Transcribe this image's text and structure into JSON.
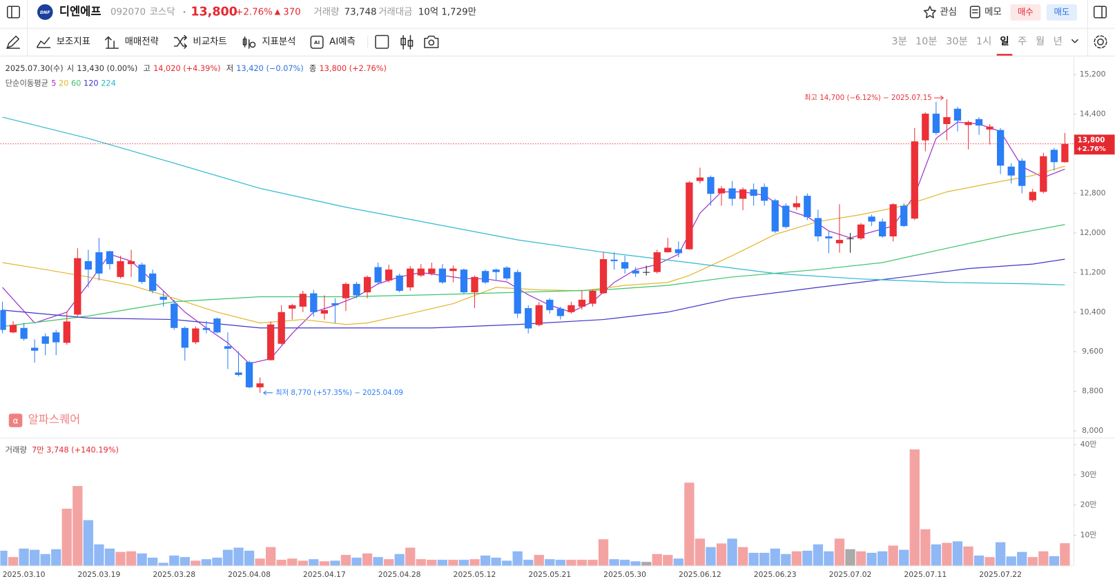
{
  "header": {
    "logo": "DNF",
    "name": "디엔에프",
    "code": "092070",
    "market": "코스닥",
    "price": "13,800",
    "change_rate": "+2.76%",
    "change": "370",
    "volume_label": "거래량",
    "volume": "73,748",
    "amount_label": "거래대금",
    "amount": "10억 1,729만",
    "watch": "관심",
    "memo": "메모",
    "buy": "매수",
    "sell": "매도"
  },
  "toolbar": {
    "tools": [
      "보조지표",
      "매매전략",
      "비교차트",
      "지표분석",
      "AI예측"
    ],
    "periods": [
      "3분",
      "10분",
      "30분",
      "1시",
      "일",
      "주",
      "월",
      "년"
    ],
    "selected_period": 4
  },
  "chart_data": [
    {
      "type": "candlestick",
      "info": {
        "date": "2025.07.30(수)",
        "open_label": "시",
        "open": "13,430 (0.00%)",
        "high_label": "고",
        "high": "14,020 (+4.39%)",
        "low_label": "저",
        "low": "13,420 (−0.07%)",
        "close_label": "종",
        "close": "13,800 (+2.76%)"
      },
      "categories": [
        null,
        null,
        "2025.03.10",
        null,
        null,
        null,
        null,
        null,
        null,
        "2025.03.19",
        null,
        null,
        null,
        null,
        null,
        null,
        "2025.03.28",
        null,
        null,
        null,
        null,
        null,
        null,
        "2025.04.08",
        null,
        null,
        null,
        null,
        null,
        null,
        "2025.04.17",
        null,
        null,
        null,
        null,
        null,
        null,
        "2025.04.28",
        null,
        null,
        null,
        null,
        null,
        null,
        "2025.05.12",
        null,
        null,
        null,
        null,
        null,
        null,
        "2025.05.21",
        null,
        null,
        null,
        null,
        null,
        null,
        "2025.05.30",
        null,
        null,
        null,
        null,
        null,
        null,
        "2025.06.12",
        null,
        null,
        null,
        null,
        null,
        null,
        "2025.06.23",
        null,
        null,
        null,
        null,
        null,
        null,
        "2025.07.02",
        null,
        null,
        null,
        null,
        null,
        null,
        "2025.07.11",
        null,
        null,
        null,
        null,
        null,
        null,
        "2025.07.22",
        null,
        null,
        null,
        null,
        null,
        null
      ],
      "open": [
        10440,
        9990,
        10080,
        9680,
        9910,
        9990,
        9780,
        10350,
        11430,
        11610,
        11630,
        11110,
        11370,
        11360,
        11180,
        10710,
        10570,
        10080,
        9790,
        10080,
        10270,
        9710,
        9180,
        9390,
        8880,
        9430,
        9760,
        10470,
        10510,
        10780,
        10370,
        10580,
        10680,
        10970,
        10800,
        11310,
        11040,
        11140,
        10900,
        11140,
        11180,
        11280,
        11230,
        11260,
        10800,
        11230,
        11260,
        11300,
        11210,
        10480,
        10140,
        10650,
        10470,
        10400,
        10510,
        10570,
        10780,
        11460,
        11410,
        11240,
        11210,
        11210,
        11610,
        11670,
        11670,
        13050,
        13130,
        12800,
        12900,
        12690,
        12880,
        12930,
        12660,
        12550,
        12520,
        12750,
        12300,
        11930,
        11790,
        11890,
        11890,
        12330,
        12230,
        11930,
        12550,
        12290,
        13870,
        14410,
        14200,
        14510,
        14180,
        14300,
        14090,
        14080,
        13340,
        13460,
        12660,
        12830,
        13680,
        13430
      ],
      "high": [
        10610,
        10220,
        10180,
        9850,
        9970,
        10040,
        10400,
        11690,
        11660,
        11900,
        11640,
        11540,
        11660,
        11400,
        11260,
        10830,
        10650,
        10110,
        10110,
        10220,
        10290,
        9990,
        9610,
        9420,
        9080,
        10210,
        10540,
        10570,
        10830,
        10850,
        10740,
        10680,
        11000,
        11010,
        11140,
        11400,
        11360,
        11180,
        11330,
        11370,
        11400,
        11370,
        11340,
        11280,
        11140,
        11260,
        11280,
        11330,
        11260,
        10540,
        10600,
        10680,
        10510,
        10610,
        10830,
        10850,
        11610,
        11610,
        11540,
        11310,
        11340,
        11660,
        11900,
        11830,
        13050,
        13320,
        13160,
        12950,
        13050,
        12920,
        13000,
        13000,
        12690,
        12600,
        12750,
        12800,
        12470,
        12040,
        12580,
        12000,
        12200,
        12370,
        12290,
        12600,
        12600,
        14120,
        14440,
        14650,
        14700,
        14550,
        14270,
        14340,
        14200,
        14120,
        13410,
        13510,
        12890,
        13620,
        13720,
        14020
      ],
      "low": [
        9970,
        9970,
        9820,
        9380,
        9530,
        9530,
        9740,
        10310,
        10900,
        11040,
        11260,
        11080,
        11110,
        10970,
        10780,
        10510,
        10040,
        9420,
        9750,
        9970,
        9970,
        9250,
        9100,
        8860,
        8770,
        9420,
        9740,
        10250,
        10400,
        10310,
        10250,
        10180,
        10420,
        10680,
        10680,
        10970,
        11000,
        10800,
        10830,
        11110,
        11140,
        10970,
        11000,
        10770,
        10480,
        10970,
        11040,
        11040,
        10280,
        9970,
        10110,
        10370,
        10250,
        10370,
        10450,
        10510,
        10770,
        11260,
        11180,
        11110,
        11140,
        11180,
        11600,
        11510,
        11660,
        13000,
        12550,
        12550,
        12550,
        12460,
        12550,
        12550,
        12000,
        12090,
        12460,
        12260,
        11830,
        11590,
        11600,
        11600,
        11860,
        12140,
        11900,
        11830,
        12120,
        12260,
        13650,
        13980,
        13870,
        14050,
        13690,
        13980,
        13790,
        13190,
        13000,
        12800,
        12620,
        12800,
        13260,
        13420
      ],
      "close": [
        10040,
        10140,
        9860,
        9620,
        9760,
        9790,
        10210,
        11490,
        11260,
        11180,
        11370,
        11430,
        11430,
        11010,
        10830,
        10650,
        10080,
        9680,
        10070,
        10040,
        9990,
        9660,
        9130,
        8880,
        8960,
        10150,
        10400,
        10540,
        10770,
        10400,
        10440,
        10540,
        10970,
        10740,
        11110,
        11000,
        11260,
        10830,
        11280,
        11280,
        11280,
        11000,
        11280,
        10800,
        11110,
        11000,
        11210,
        11080,
        10370,
        10070,
        10540,
        10440,
        10320,
        10540,
        10650,
        10830,
        11470,
        11430,
        11280,
        11180,
        11210,
        11610,
        11700,
        11590,
        13020,
        13120,
        12790,
        12900,
        12690,
        12880,
        12750,
        12650,
        12030,
        12120,
        12600,
        12320,
        11930,
        11890,
        11860,
        11890,
        12170,
        12230,
        11930,
        12580,
        12140,
        13850,
        14410,
        14020,
        14340,
        14270,
        14240,
        14170,
        14150,
        13360,
        13160,
        12950,
        12830,
        13550,
        13430,
        13800
      ],
      "up_color": "#eb3037",
      "down_color": "#2b7ef5",
      "flat_color": "#222222",
      "ylim": [
        7860,
        15560
      ],
      "yticks": [
        {
          "value": 8000,
          "label": "8,000"
        },
        {
          "value": 8800,
          "label": "8,800"
        },
        {
          "value": 9600,
          "label": "9,600"
        },
        {
          "value": 10400,
          "label": "10,400"
        },
        {
          "value": 11200,
          "label": "11,200"
        },
        {
          "value": 12000,
          "label": "12,000"
        },
        {
          "value": 12800,
          "label": "12,800"
        },
        {
          "value": 14400,
          "label": "14,400"
        },
        {
          "value": 15200,
          "label": "15,200"
        }
      ],
      "moving_averages": {
        "label": "단순이동평균",
        "series": [
          {
            "name": "5",
            "color": "#a333c8",
            "x": [
              0,
              3,
              6,
              8,
              10,
              12,
              15,
              17,
              19,
              21,
              23,
              25,
              27,
              29,
              31,
              33,
              35,
              37,
              39,
              41,
              43,
              45,
              47,
              49,
              51,
              53,
              55,
              57,
              59,
              61,
              63,
              65,
              67,
              69,
              71,
              73,
              75,
              77,
              79,
              81,
              83,
              85,
              87,
              89,
              91,
              93,
              95,
              97,
              99
            ],
            "values": [
              10900,
              10180,
              10400,
              10970,
              11570,
              11430,
              10830,
              10400,
              10080,
              9780,
              9360,
              9460,
              9970,
              10400,
              10540,
              10710,
              10970,
              11110,
              11200,
              11140,
              11080,
              11070,
              11010,
              10750,
              10540,
              10400,
              10610,
              11000,
              11260,
              11360,
              11570,
              12400,
              12830,
              12830,
              12760,
              12470,
              12330,
              12040,
              11900,
              12020,
              12140,
              12760,
              13910,
              14240,
              14200,
              14050,
              13340,
              13120,
              13290
            ]
          },
          {
            "name": "20",
            "color": "#e3b52b",
            "x": [
              0,
              4,
              8,
              12,
              16,
              20,
              24,
              28,
              32,
              34,
              38,
              42,
              46,
              50,
              54,
              58,
              62,
              64,
              68,
              72,
              76,
              80,
              84,
              88,
              92,
              96,
              99
            ],
            "values": [
              11400,
              11260,
              11110,
              10940,
              10680,
              10400,
              10180,
              10250,
              10150,
              10180,
              10370,
              10570,
              10900,
              10850,
              10830,
              10940,
              11000,
              11140,
              11540,
              11970,
              12230,
              12370,
              12550,
              12830,
              13000,
              13160,
              13350
            ]
          },
          {
            "name": "60",
            "color": "#3cc46a",
            "x": [
              0,
              8,
              16,
              24,
              32,
              40,
              48,
              56,
              62,
              68,
              76,
              82,
              88,
              94,
              99
            ],
            "values": [
              10110,
              10320,
              10610,
              10710,
              10710,
              10750,
              10800,
              10850,
              10940,
              11110,
              11260,
              11400,
              11690,
              11970,
              12170
            ]
          },
          {
            "name": "120",
            "color": "#3d35c8",
            "x": [
              0,
              8,
              16,
              24,
              32,
              40,
              48,
              56,
              62,
              68,
              76,
              84,
              90,
              96,
              99
            ],
            "values": [
              10440,
              10280,
              10250,
              10080,
              10080,
              10080,
              10150,
              10250,
              10400,
              10680,
              10900,
              11110,
              11280,
              11370,
              11470
            ]
          },
          {
            "name": "224",
            "color": "#2cb8cf",
            "x": [
              0,
              8,
              16,
              24,
              32,
              40,
              48,
              56,
              64,
              72,
              80,
              88,
              96,
              99
            ],
            "values": [
              14340,
              13910,
              13410,
              12900,
              12520,
              12190,
              11860,
              11610,
              11400,
              11180,
              11070,
              11000,
              10970,
              10950
            ]
          }
        ]
      },
      "max_label": "최고 14,700 (−6.12%) − 2025.07.15",
      "min_label": "최저 8,770 (+57.35%) − 2025.04.09",
      "last_label": "13,800",
      "last_change": "+2.76%",
      "brand": "알파스퀘어"
    },
    {
      "type": "bar",
      "title": "거래량",
      "subtitle": "7만 3,748 (+140.19%)",
      "values": [
        49000,
        28000,
        56000,
        52000,
        38000,
        54000,
        188000,
        263000,
        150000,
        70000,
        56000,
        45000,
        47000,
        40000,
        26000,
        9000,
        33000,
        28000,
        16000,
        21000,
        26000,
        52000,
        59000,
        49000,
        23000,
        61000,
        19000,
        23000,
        16000,
        21000,
        14000,
        16000,
        35000,
        26000,
        40000,
        28000,
        21000,
        38000,
        59000,
        21000,
        19000,
        19000,
        19000,
        19000,
        21000,
        33000,
        26000,
        16000,
        47000,
        19000,
        35000,
        21000,
        19000,
        19000,
        19000,
        19000,
        87000,
        21000,
        19000,
        14000,
        12000,
        38000,
        35000,
        23000,
        274000,
        89000,
        61000,
        73000,
        89000,
        61000,
        42000,
        42000,
        56000,
        38000,
        47000,
        49000,
        70000,
        47000,
        89000,
        54000,
        47000,
        42000,
        47000,
        66000,
        52000,
        384000,
        120000,
        70000,
        75000,
        80000,
        63000,
        33000,
        28000,
        77000,
        30000,
        45000,
        28000,
        47000,
        31000,
        73748
      ],
      "up_color": "#f4a3a3",
      "down_color": "#8fb8f5",
      "flat_color": "#aaaaaa",
      "ylim": [
        0,
        420000
      ],
      "yticks": [
        {
          "value": 100000,
          "label": "10만"
        },
        {
          "value": 200000,
          "label": "20만"
        },
        {
          "value": 300000,
          "label": "30만"
        },
        {
          "value": 400000,
          "label": "40만"
        }
      ]
    }
  ]
}
